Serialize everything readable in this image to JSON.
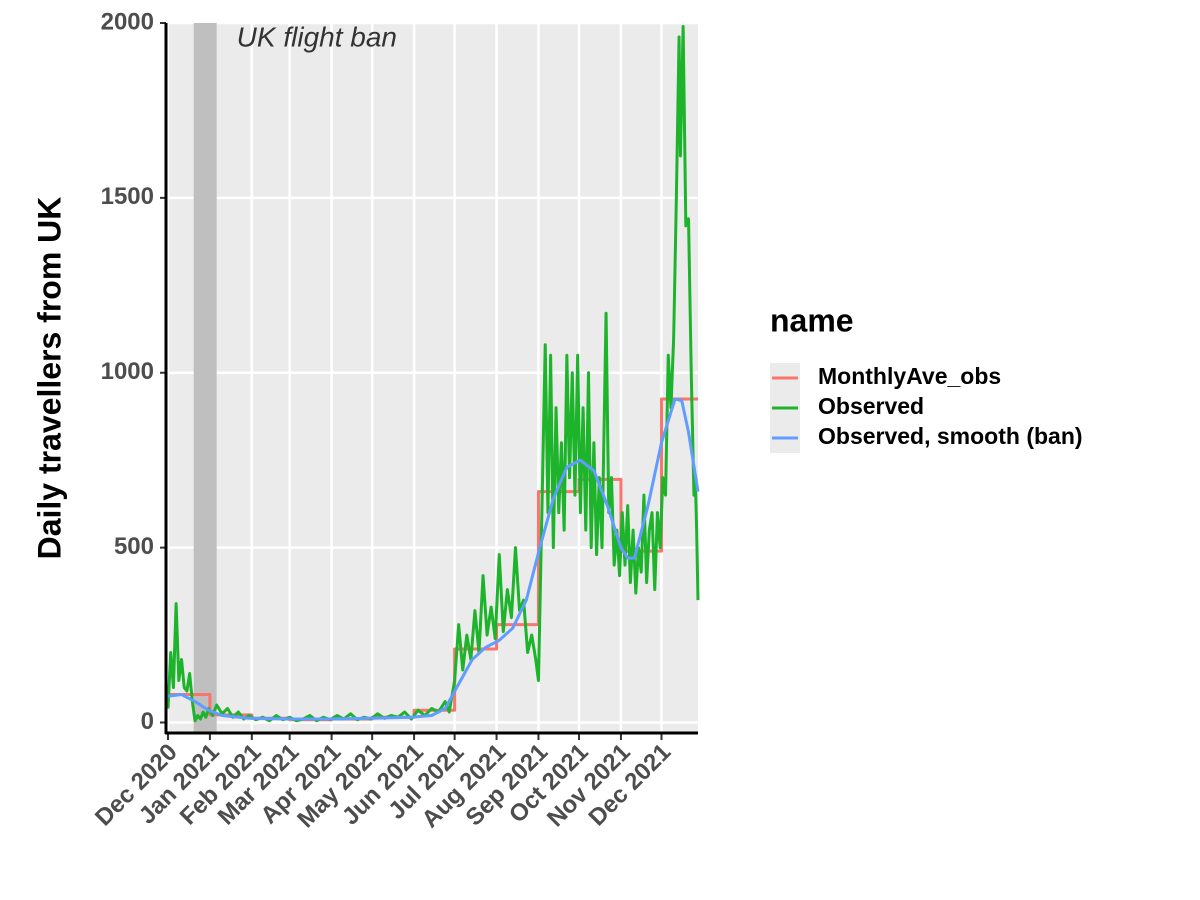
{
  "chart_data": {
    "type": "line",
    "ylabel": "Daily travellers from UK",
    "xlim": [
      0,
      392
    ],
    "xticks": [
      {
        "value": 0,
        "label": "Dec 2020"
      },
      {
        "value": 31,
        "label": "Jan 2021"
      },
      {
        "value": 62,
        "label": "Feb 2021"
      },
      {
        "value": 90,
        "label": "Mar 2021"
      },
      {
        "value": 121,
        "label": "Apr 2021"
      },
      {
        "value": 151,
        "label": "May 2021"
      },
      {
        "value": 182,
        "label": "Jun 2021"
      },
      {
        "value": 212,
        "label": "Jul 2021"
      },
      {
        "value": 243,
        "label": "Aug 2021"
      },
      {
        "value": 274,
        "label": "Sep 2021"
      },
      {
        "value": 304,
        "label": "Oct 2021"
      },
      {
        "value": 335,
        "label": "Nov 2021"
      },
      {
        "value": 365,
        "label": "Dec 2021"
      }
    ],
    "ylim": [
      -30,
      2000
    ],
    "yticks": [
      0,
      500,
      1000,
      1500,
      2000
    ],
    "grid": true,
    "ban_span": [
      19,
      36
    ],
    "annotation": "UK flight ban",
    "legend_title": "name",
    "legend_position": "right",
    "series": [
      {
        "name": "MonthlyAve_obs",
        "color": "#F8766D",
        "step": true,
        "x": [
          0,
          31,
          62,
          90,
          121,
          151,
          182,
          212,
          243,
          274,
          304,
          335,
          365
        ],
        "values": [
          80,
          22,
          12,
          8,
          10,
          15,
          35,
          210,
          280,
          660,
          695,
          490,
          925
        ]
      },
      {
        "name": "Observed",
        "color": "#1DB32B",
        "step": false,
        "x": [
          0,
          2,
          4,
          6,
          8,
          10,
          12,
          14,
          16,
          18,
          20,
          22,
          24,
          26,
          28,
          30,
          33,
          36,
          40,
          44,
          48,
          52,
          56,
          60,
          65,
          70,
          75,
          80,
          85,
          90,
          95,
          100,
          105,
          110,
          115,
          120,
          125,
          130,
          135,
          140,
          145,
          150,
          155,
          160,
          165,
          170,
          175,
          180,
          185,
          190,
          195,
          200,
          205,
          208,
          212,
          215,
          218,
          221,
          224,
          227,
          230,
          233,
          236,
          239,
          242,
          245,
          248,
          251,
          254,
          257,
          260,
          263,
          266,
          269,
          272,
          274,
          276,
          279,
          281,
          283,
          285,
          287,
          289,
          291,
          293,
          295,
          297,
          299,
          301,
          303,
          305,
          307,
          309,
          311,
          313,
          315,
          317,
          319,
          321,
          324,
          326,
          328,
          330,
          332,
          334,
          336,
          338,
          340,
          342,
          344,
          346,
          348,
          350,
          352,
          354,
          356,
          358,
          360,
          362,
          364,
          366,
          368,
          370,
          372,
          374,
          376,
          378,
          379,
          381,
          383,
          385,
          387,
          389,
          390,
          391,
          392
        ],
        "values": [
          40,
          200,
          100,
          340,
          120,
          180,
          100,
          90,
          140,
          60,
          5,
          20,
          10,
          30,
          15,
          40,
          20,
          50,
          25,
          40,
          15,
          30,
          10,
          20,
          8,
          15,
          5,
          20,
          8,
          15,
          5,
          10,
          20,
          5,
          15,
          8,
          20,
          10,
          25,
          8,
          15,
          10,
          25,
          12,
          20,
          15,
          30,
          10,
          35,
          20,
          40,
          30,
          60,
          30,
          120,
          280,
          150,
          250,
          180,
          320,
          200,
          420,
          250,
          330,
          240,
          480,
          260,
          380,
          300,
          500,
          320,
          350,
          200,
          250,
          180,
          120,
          500,
          1080,
          600,
          1050,
          500,
          900,
          600,
          800,
          550,
          1050,
          700,
          1000,
          650,
          1050,
          600,
          900,
          550,
          1000,
          500,
          800,
          480,
          700,
          500,
          1170,
          600,
          700,
          450,
          550,
          420,
          600,
          450,
          620,
          400,
          550,
          370,
          500,
          430,
          650,
          400,
          550,
          600,
          380,
          600,
          500,
          700,
          650,
          1050,
          900,
          1100,
          1500,
          1960,
          1620,
          1990,
          1420,
          1440,
          1000,
          650,
          700,
          550,
          350
        ]
      },
      {
        "name": "Observed, smooth (ban)",
        "color": "#619CFF",
        "step": false,
        "x": [
          0,
          10,
          20,
          30,
          40,
          60,
          90,
          120,
          150,
          180,
          195,
          205,
          215,
          225,
          235,
          245,
          255,
          265,
          275,
          285,
          295,
          305,
          315,
          325,
          335,
          340,
          345,
          355,
          365,
          375,
          380,
          385,
          392
        ],
        "values": [
          75,
          80,
          60,
          35,
          20,
          12,
          10,
          10,
          12,
          15,
          20,
          40,
          110,
          180,
          215,
          235,
          270,
          350,
          500,
          640,
          730,
          750,
          720,
          620,
          500,
          470,
          470,
          620,
          800,
          925,
          920,
          830,
          660
        ]
      }
    ]
  }
}
